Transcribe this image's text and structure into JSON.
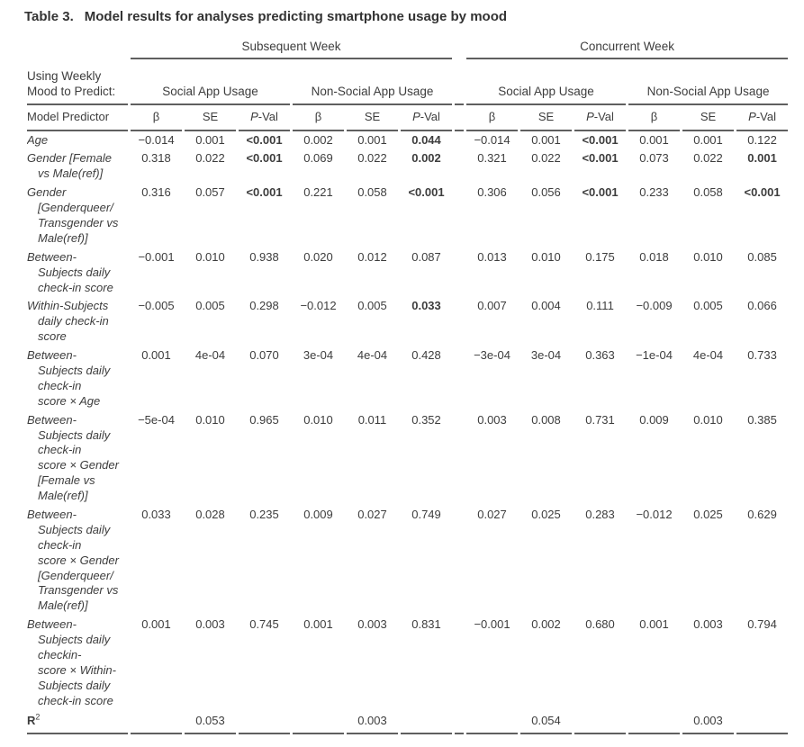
{
  "title": {
    "label": "Table 3.",
    "text": "Model results for analyses predicting smartphone usage by mood"
  },
  "table": {
    "spanners": [
      {
        "label": "Subsequent Week"
      },
      {
        "label": "Concurrent Week"
      }
    ],
    "corner": "Using Weekly\nMood to Predict:",
    "groups": [
      "Social App Usage",
      "Non-Social App Usage",
      "Social App Usage",
      "Non-Social App Usage"
    ],
    "predictor_header": "Model Predictor",
    "stats": {
      "beta": "β",
      "se": "SE",
      "pval_italic": "P",
      "pval_rest": "-Val"
    },
    "rows": [
      {
        "label": "Age",
        "values": [
          "−0.014",
          "0.001",
          "<0.001",
          "0.002",
          "0.001",
          "0.044",
          "−0.014",
          "0.001",
          "<0.001",
          "0.001",
          "0.001",
          "0.122"
        ],
        "bold": [
          2,
          5,
          8
        ]
      },
      {
        "label": "Gender [Female\nvs Male(ref)]",
        "values": [
          "0.318",
          "0.022",
          "<0.001",
          "0.069",
          "0.022",
          "0.002",
          "0.321",
          "0.022",
          "<0.001",
          "0.073",
          "0.022",
          "0.001"
        ],
        "bold": [
          2,
          5,
          8,
          11
        ]
      },
      {
        "label": "Gender\n[Genderqueer/\nTransgender vs\nMale(ref)]",
        "values": [
          "0.316",
          "0.057",
          "<0.001",
          "0.221",
          "0.058",
          "<0.001",
          "0.306",
          "0.056",
          "<0.001",
          "0.233",
          "0.058",
          "<0.001"
        ],
        "bold": [
          2,
          5,
          8,
          11
        ]
      },
      {
        "label": "Between-\nSubjects daily\ncheck-in score",
        "values": [
          "−0.001",
          "0.010",
          "0.938",
          "0.020",
          "0.012",
          "0.087",
          "0.013",
          "0.010",
          "0.175",
          "0.018",
          "0.010",
          "0.085"
        ],
        "bold": []
      },
      {
        "label": "Within-Subjects\ndaily check-in\nscore",
        "values": [
          "−0.005",
          "0.005",
          "0.298",
          "−0.012",
          "0.005",
          "0.033",
          "0.007",
          "0.004",
          "0.111",
          "−0.009",
          "0.005",
          "0.066"
        ],
        "bold": [
          5
        ]
      },
      {
        "label": "Between-\nSubjects daily\ncheck-in\nscore × Age",
        "values": [
          "0.001",
          "4e-04",
          "0.070",
          "3e-04",
          "4e-04",
          "0.428",
          "−3e-04",
          "3e-04",
          "0.363",
          "−1e-04",
          "4e-04",
          "0.733"
        ],
        "bold": []
      },
      {
        "label": "Between-\nSubjects daily\ncheck-in\nscore × Gender\n[Female vs\nMale(ref)]",
        "values": [
          "−5e-04",
          "0.010",
          "0.965",
          "0.010",
          "0.011",
          "0.352",
          "0.003",
          "0.008",
          "0.731",
          "0.009",
          "0.010",
          "0.385"
        ],
        "bold": []
      },
      {
        "label": "Between-\nSubjects daily\ncheck-in\nscore × Gender\n[Genderqueer/\nTransgender vs\nMale(ref)]",
        "values": [
          "0.033",
          "0.028",
          "0.235",
          "0.009",
          "0.027",
          "0.749",
          "0.027",
          "0.025",
          "0.283",
          "−0.012",
          "0.025",
          "0.629"
        ],
        "bold": []
      },
      {
        "label": "Between-\nSubjects daily\ncheckin-\nscore × Within-\nSubjects daily\ncheck-in score",
        "values": [
          "0.001",
          "0.003",
          "0.745",
          "0.001",
          "0.003",
          "0.831",
          "−0.001",
          "0.002",
          "0.680",
          "0.001",
          "0.003",
          "0.794"
        ],
        "bold": []
      }
    ],
    "r2": {
      "label": "R",
      "sup": "2",
      "values": [
        "",
        "0.053",
        "",
        "",
        "0.003",
        "",
        "",
        "0.054",
        "",
        "",
        "0.003",
        ""
      ]
    }
  }
}
